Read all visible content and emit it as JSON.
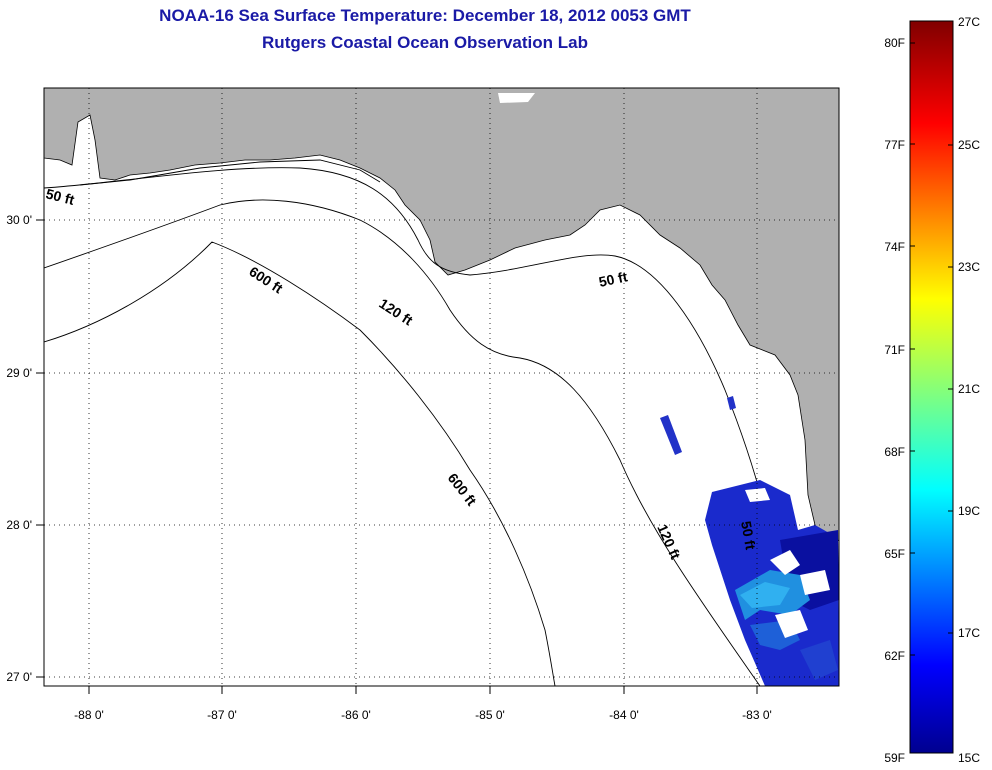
{
  "title": {
    "line1": "NOAA-16 Sea Surface Temperature:  December 18, 2012 0053 GMT",
    "line2": "Rutgers Coastal Ocean Observation Lab"
  },
  "map": {
    "lon_ticks": [
      "-88 0'",
      "-87 0'",
      "-86 0'",
      "-85 0'",
      "-84 0'",
      "-83 0'"
    ],
    "lat_ticks": [
      "30 0'",
      "29 0'",
      "28 0'",
      "27 0'"
    ],
    "contour_labels": [
      "50 ft",
      "600 ft",
      "120 ft",
      "50 ft",
      "600 ft",
      "120 ft",
      "50 ft"
    ],
    "colors": {
      "land": "#b0b0b0",
      "ocean": "#ffffff",
      "contour": "#000000"
    }
  },
  "colorbar": {
    "fahrenheit": [
      "80F",
      "77F",
      "74F",
      "71F",
      "68F",
      "65F",
      "62F",
      "59F"
    ],
    "celsius": [
      "27C",
      "25C",
      "23C",
      "21C",
      "19C",
      "17C",
      "15C"
    ]
  }
}
